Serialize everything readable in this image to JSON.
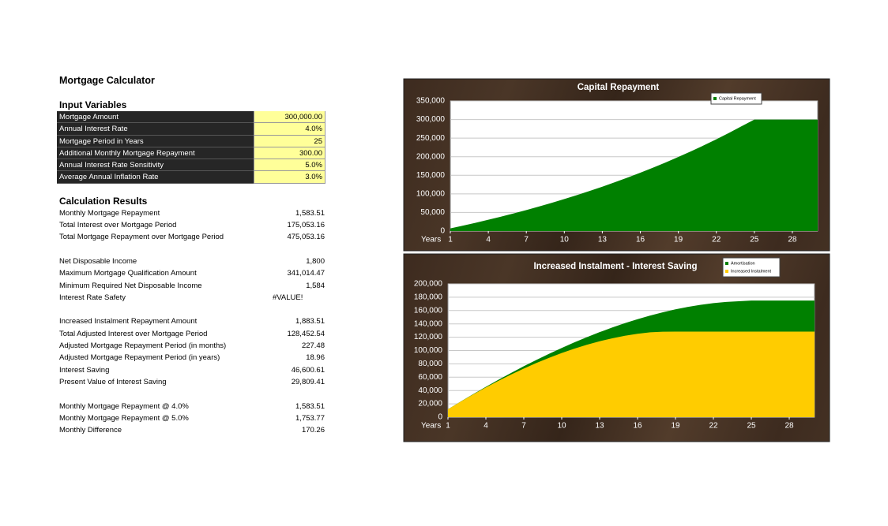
{
  "title": "Mortgage Calculator",
  "inputs": {
    "heading": "Input Variables",
    "rows": [
      [
        "Mortgage Amount",
        "300,000.00"
      ],
      [
        "Annual Interest Rate",
        "4.0%"
      ],
      [
        "Mortgage Period in Years",
        "25"
      ],
      [
        "Additional Monthly Mortgage Repayment",
        "300.00"
      ],
      [
        "Annual Interest Rate Sensitivity",
        "5.0%"
      ],
      [
        "Average Annual Inflation Rate",
        "3.0%"
      ]
    ]
  },
  "results": {
    "heading": "Calculation Results",
    "groups": [
      [
        [
          "Monthly Mortgage Repayment",
          "1,583.51"
        ],
        [
          "Total Interest over Mortgage Period",
          "175,053.16"
        ],
        [
          "Total Mortgage Repayment over Mortgage Period",
          "475,053.16"
        ]
      ],
      [
        [
          "Net Disposable Income",
          "1,800"
        ],
        [
          "Maximum Mortgage Qualification Amount",
          "341,014.47"
        ],
        [
          "Minimum Required Net Disposable Income",
          "1,584"
        ],
        [
          "Interest Rate Safety",
          "#VALUE!"
        ]
      ],
      [
        [
          "Increased Instalment Repayment Amount",
          "1,883.51"
        ],
        [
          "Total Adjusted Interest over Mortgage Period",
          "128,452.54"
        ],
        [
          "Adjusted Mortgage Repayment Period (in months)",
          "227.48"
        ],
        [
          "Adjusted Mortgage Repayment Period (in years)",
          "18.96"
        ],
        [
          "Interest Saving",
          "46,600.61"
        ],
        [
          "Present Value of Interest Saving",
          "29,809.41"
        ]
      ],
      [
        [
          "Monthly Mortgage Repayment @ 4.0%",
          "1,583.51"
        ],
        [
          "Monthly Mortgage Repayment @ 5.0%",
          "1,753.77"
        ],
        [
          "Monthly Difference",
          "170.26"
        ]
      ]
    ]
  },
  "chart_data": [
    {
      "type": "area",
      "title": "Capital Repayment",
      "x_label": "Years",
      "legend": "top-right",
      "grid": true,
      "x": [
        1,
        2,
        3,
        4,
        5,
        6,
        7,
        8,
        9,
        10,
        11,
        12,
        13,
        14,
        15,
        16,
        17,
        18,
        19,
        20,
        21,
        22,
        23,
        24,
        25,
        26,
        27,
        28,
        29,
        30
      ],
      "xlim": [
        1,
        30
      ],
      "xticks": [
        1,
        4,
        7,
        10,
        13,
        16,
        19,
        22,
        25,
        28
      ],
      "ylim": [
        0,
        350000
      ],
      "yticks": [
        0,
        {
          "value": 50000,
          "label": "50,000"
        },
        {
          "value": 100000,
          "label": "100,000"
        },
        {
          "value": 150000,
          "label": "150,000"
        },
        {
          "value": 200000,
          "label": "200,000"
        },
        {
          "value": 250000,
          "label": "250,000"
        },
        {
          "value": 300000,
          "label": "300,000"
        },
        {
          "value": 350000,
          "label": "350,000"
        }
      ],
      "series": [
        {
          "name": "Capital Repayment",
          "color": "#008000",
          "values": [
            7150,
            14599,
            22329,
            30394,
            38789,
            47519,
            56607,
            66052,
            75890,
            86136,
            96797,
            107879,
            119426,
            131438,
            143951,
            156964,
            170506,
            184599,
            199271,
            214536,
            230416,
            246947,
            264142,
            282046,
            300000,
            300000,
            300000,
            300000,
            300000,
            300000
          ]
        }
      ]
    },
    {
      "type": "area",
      "title": "Increased Instalment - Interest Saving",
      "x_label": "Years",
      "legend": "top-right",
      "grid": true,
      "x": [
        1,
        2,
        3,
        4,
        5,
        6,
        7,
        8,
        9,
        10,
        11,
        12,
        13,
        14,
        15,
        16,
        17,
        18,
        19,
        20,
        21,
        22,
        23,
        24,
        25,
        26,
        27,
        28,
        29,
        30
      ],
      "xlim": [
        1,
        30
      ],
      "xticks": [
        1,
        4,
        7,
        10,
        13,
        16,
        19,
        22,
        25,
        28
      ],
      "ylim": [
        0,
        200000
      ],
      "yticks": [
        0,
        {
          "value": 20000,
          "label": "20,000"
        },
        {
          "value": 40000,
          "label": "40,000"
        },
        {
          "value": 60000,
          "label": "60,000"
        },
        {
          "value": 80000,
          "label": "80,000"
        },
        {
          "value": 100000,
          "label": "100,000"
        },
        {
          "value": 120000,
          "label": "120,000"
        },
        {
          "value": 140000,
          "label": "140,000"
        },
        {
          "value": 160000,
          "label": "160,000"
        },
        {
          "value": 180000,
          "label": "180,000"
        },
        {
          "value": 200000,
          "label": "200,000"
        }
      ],
      "series": [
        {
          "name": "Amortisation",
          "color": "#008000",
          "values": [
            11852,
            23405,
            34677,
            45614,
            56222,
            66494,
            76408,
            85965,
            95129,
            103885,
            112226,
            120146,
            127602,
            134592,
            141081,
            147070,
            152530,
            157439,
            161769,
            165506,
            168629,
            171100,
            172907,
            174005,
            175053,
            175053,
            175053,
            175053,
            175053,
            175053
          ]
        },
        {
          "name": "Increased Instalment",
          "color": "#ffcc00",
          "values": [
            11830,
            23210,
            34165,
            44616,
            54572,
            64021,
            72932,
            81304,
            89084,
            96250,
            102791,
            108697,
            113901,
            118406,
            122157,
            125154,
            127354,
            128200,
            128452,
            128452,
            128452,
            128452,
            128452,
            128452,
            128452,
            128452,
            128452,
            128452,
            128452,
            128452
          ]
        }
      ]
    }
  ]
}
